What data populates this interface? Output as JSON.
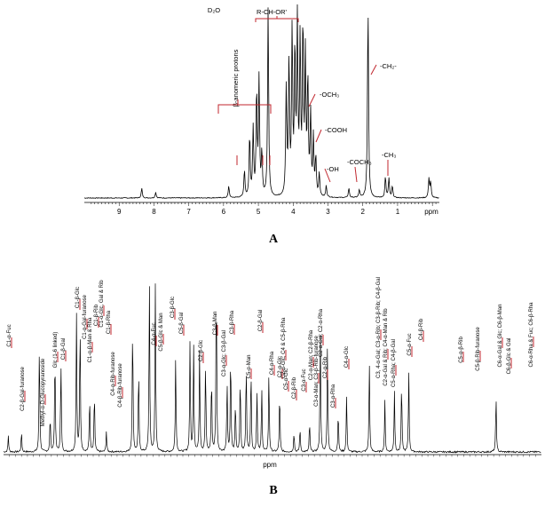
{
  "chart_data": [
    {
      "type": "line",
      "panel_label": "A",
      "xlabel": "ppm",
      "x_reversed": true,
      "xlim": [
        10.0,
        -0.2
      ],
      "ticks": [
        "9",
        "8",
        "7",
        "6",
        "5",
        "4",
        "3",
        "2",
        "1"
      ],
      "peaks": [
        {
          "ppm": 8.35,
          "h": 0.05
        },
        {
          "ppm": 7.95,
          "h": 0.03
        },
        {
          "ppm": 5.85,
          "h": 0.06
        },
        {
          "ppm": 5.4,
          "h": 0.14
        },
        {
          "ppm": 5.25,
          "h": 0.32
        },
        {
          "ppm": 5.15,
          "h": 0.35
        },
        {
          "ppm": 5.05,
          "h": 0.55
        },
        {
          "ppm": 4.98,
          "h": 0.6
        },
        {
          "ppm": 4.9,
          "h": 0.22
        },
        {
          "ppm": 4.72,
          "h": 0.98
        },
        {
          "ppm": 4.2,
          "h": 0.55
        },
        {
          "ppm": 4.12,
          "h": 0.7
        },
        {
          "ppm": 4.03,
          "h": 0.85
        },
        {
          "ppm": 3.95,
          "h": 0.75
        },
        {
          "ppm": 3.88,
          "h": 0.9
        },
        {
          "ppm": 3.8,
          "h": 0.8
        },
        {
          "ppm": 3.72,
          "h": 0.88
        },
        {
          "ppm": 3.65,
          "h": 0.7
        },
        {
          "ppm": 3.58,
          "h": 0.6
        },
        {
          "ppm": 3.5,
          "h": 0.42
        },
        {
          "ppm": 3.42,
          "h": 0.3
        },
        {
          "ppm": 3.35,
          "h": 0.2
        },
        {
          "ppm": 3.25,
          "h": 0.12
        },
        {
          "ppm": 3.05,
          "h": 0.06
        },
        {
          "ppm": 2.4,
          "h": 0.05
        },
        {
          "ppm": 2.1,
          "h": 0.04
        },
        {
          "ppm": 1.85,
          "h": 1.0
        },
        {
          "ppm": 1.35,
          "h": 0.11
        },
        {
          "ppm": 1.25,
          "h": 0.1
        },
        {
          "ppm": 1.15,
          "h": 0.06
        },
        {
          "ppm": 0.1,
          "h": 0.1
        },
        {
          "ppm": 0.05,
          "h": 0.08
        }
      ],
      "annotations": [
        {
          "text": "D₂O",
          "ppm": 4.72
        },
        {
          "text": "R-CH-OR'",
          "ppm": 3.8
        },
        {
          "text": "β-anomeric protons",
          "ppm": 5.3
        },
        {
          "text": "-OCH₃",
          "ppm": 3.55
        },
        {
          "text": "-COOH",
          "ppm": 3.35
        },
        {
          "text": "-OH",
          "ppm": 3.1
        },
        {
          "text": "-COCH₃",
          "ppm": 2.4
        },
        {
          "text": "-CH₂-",
          "ppm": 1.85
        },
        {
          "text": "-CH₃",
          "ppm": 1.3
        }
      ]
    },
    {
      "type": "line",
      "panel_label": "B",
      "xlabel": "ppm",
      "x_reversed": true,
      "xlim": [
        104.0,
        59.0
      ],
      "peaks": [
        {
          "ppm": 103.6,
          "h": 0.08
        },
        {
          "ppm": 102.5,
          "h": 0.1
        },
        {
          "ppm": 101.0,
          "h": 0.55
        },
        {
          "ppm": 100.1,
          "h": 0.18
        },
        {
          "ppm": 99.7,
          "h": 0.5
        },
        {
          "ppm": 99.2,
          "h": 0.45
        },
        {
          "ppm": 97.9,
          "h": 0.68
        },
        {
          "ppm": 97.6,
          "h": 0.65
        },
        {
          "ppm": 96.8,
          "h": 0.28
        },
        {
          "ppm": 96.4,
          "h": 0.3
        },
        {
          "ppm": 95.4,
          "h": 0.1
        },
        {
          "ppm": 93.2,
          "h": 0.66
        },
        {
          "ppm": 92.7,
          "h": 0.42
        },
        {
          "ppm": 91.8,
          "h": 0.85
        },
        {
          "ppm": 91.3,
          "h": 0.82
        },
        {
          "ppm": 89.6,
          "h": 0.48
        },
        {
          "ppm": 88.4,
          "h": 0.55
        },
        {
          "ppm": 88.1,
          "h": 0.53
        },
        {
          "ppm": 87.6,
          "h": 0.5
        },
        {
          "ppm": 87.1,
          "h": 0.45
        },
        {
          "ppm": 86.6,
          "h": 0.38
        },
        {
          "ppm": 86.2,
          "h": 0.88
        },
        {
          "ppm": 85.3,
          "h": 0.35
        },
        {
          "ppm": 85.0,
          "h": 0.5
        },
        {
          "ppm": 84.6,
          "h": 0.25
        },
        {
          "ppm": 84.2,
          "h": 0.38
        },
        {
          "ppm": 83.7,
          "h": 0.45
        },
        {
          "ppm": 83.3,
          "h": 0.42
        },
        {
          "ppm": 82.8,
          "h": 0.3
        },
        {
          "ppm": 82.4,
          "h": 0.32
        },
        {
          "ppm": 81.8,
          "h": 0.4
        },
        {
          "ppm": 80.9,
          "h": 0.3
        },
        {
          "ppm": 79.7,
          "h": 0.1
        },
        {
          "ppm": 79.2,
          "h": 0.12
        },
        {
          "ppm": 78.4,
          "h": 0.15
        },
        {
          "ppm": 77.5,
          "h": 0.62
        },
        {
          "ppm": 76.9,
          "h": 0.55
        },
        {
          "ppm": 76.0,
          "h": 0.2
        },
        {
          "ppm": 75.3,
          "h": 0.28
        },
        {
          "ppm": 73.4,
          "h": 0.45
        },
        {
          "ppm": 72.1,
          "h": 0.25
        },
        {
          "ppm": 71.3,
          "h": 0.3
        },
        {
          "ppm": 70.7,
          "h": 0.35
        },
        {
          "ppm": 70.1,
          "h": 0.4
        },
        {
          "ppm": 62.8,
          "h": 0.28
        }
      ],
      "annotations": [
        "C1-α-Fuc",
        "C2-β-Gal-furanose",
        "Methyl-α-D-Glucopyranoside",
        "Glc (1-6 linked)",
        "C1-β-Gal",
        "C1-β-Glc",
        "C1-α-Gal-furanose",
        "C1-α-β-Man & Rha",
        "C1-β-Rib",
        "C1-α-Glc, Gal & Rib",
        "C1-β-Rha",
        "C4-α-Rib-furanose",
        "C4-β-Rib-furanose",
        "C4-α-Fuc",
        "C5-β-Glc & Man",
        "C3-β-Glc",
        "C5-β-Gal",
        "C2-β-Glc",
        "C3-β-Man",
        "C3-α-Glc; C3-β-Gal",
        "C3-β-Rha",
        "C5-α-Man",
        "C2-β-Gal",
        "C4-α-Rha",
        "C2-α-Glc",
        "C2-α-Glc; C4 & C5-β-Rha",
        "C5-α-Glc",
        "C2-β-Rib",
        "C3-α-Fuc",
        "C2-α-Man; C2-β-Rha",
        "C3-α-Man; C3-β-Rib-furanose",
        "C2-α-Gal; C2-α-Rha",
        "C2-α-Rib",
        "C3-α-Rha",
        "C4-α-Glc",
        "C3, 4-α-Gal; C3-α-Rib; C3-β-Rib; C4-β-Gal",
        "C2-α-Gal & Rib; C4-α-Man & Rib",
        "C5-α-Rha; C4-β-Gal",
        "C5-α-Fuc",
        "C4-β-Rib",
        "C5-α-β-Rib",
        "C5-β-Rib-furanose",
        "C6-α-Gal & Glc; C6-β-Man",
        "C6-β-Glc & Gal",
        "C6-α-Rha & Fuc; C6-β-Rha"
      ]
    }
  ]
}
